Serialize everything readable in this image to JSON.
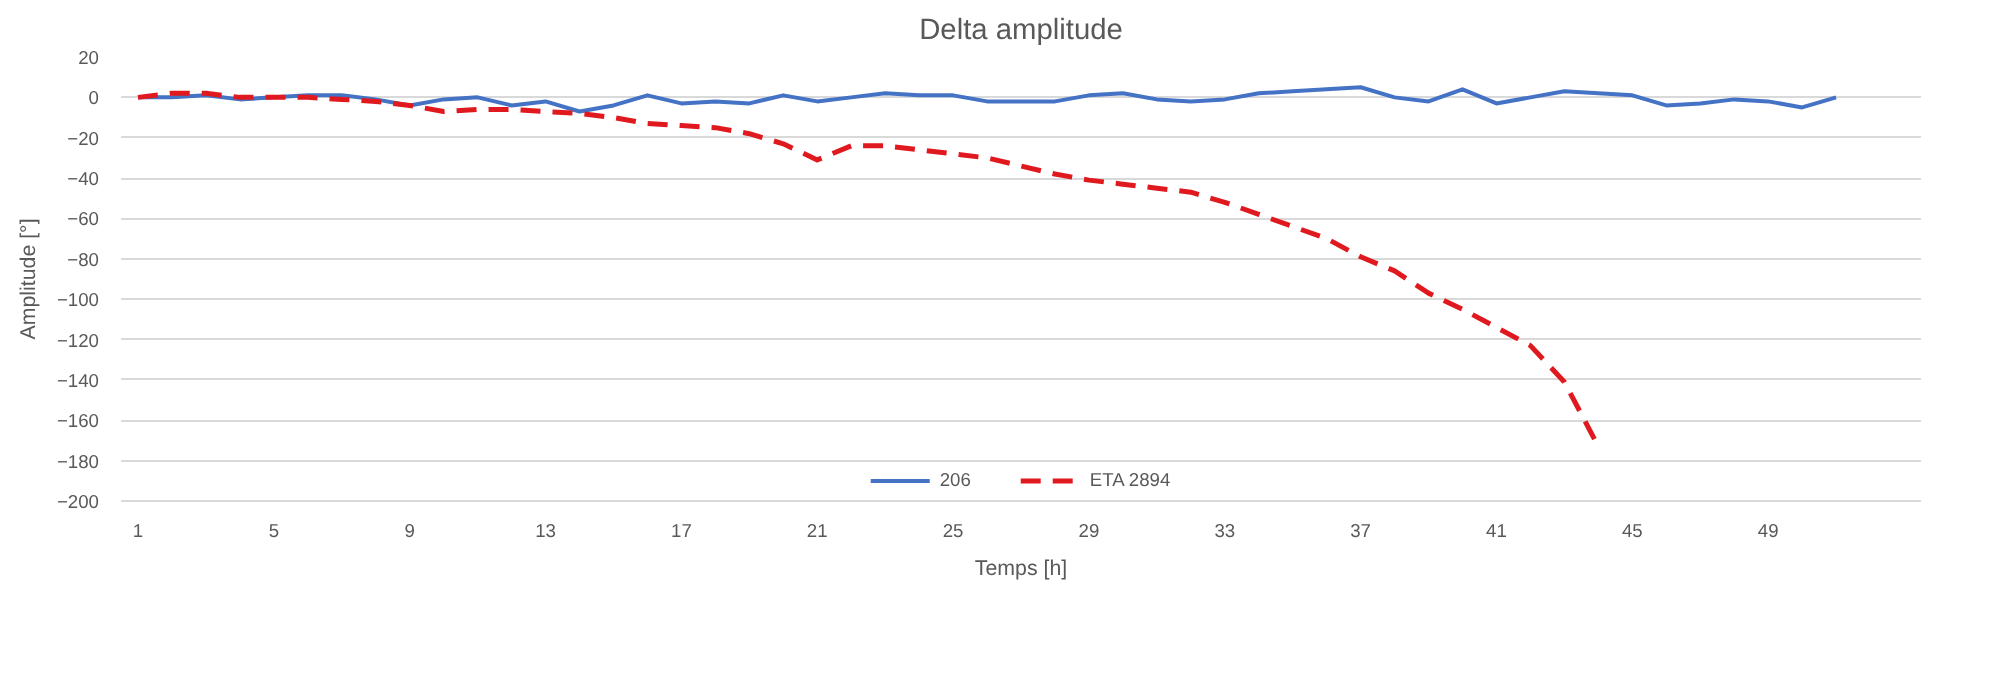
{
  "chart_data": {
    "type": "line",
    "title": "Delta amplitude",
    "xlabel": "Temps [h]",
    "ylabel": "Amplitude [°]",
    "categories": [
      "1",
      null,
      null,
      null,
      "5",
      null,
      null,
      null,
      "9",
      null,
      null,
      null,
      "13",
      null,
      null,
      null,
      "17",
      null,
      null,
      null,
      "21",
      null,
      null,
      null,
      "25",
      null,
      null,
      null,
      "29",
      null,
      null,
      null,
      "33",
      null,
      null,
      null,
      "37",
      null,
      null,
      null,
      "41",
      null,
      null,
      null,
      "45",
      null,
      null,
      null,
      "49",
      null,
      null
    ],
    "ylim": [
      -200,
      20
    ],
    "yticks": [
      20,
      0,
      -20,
      -40,
      -60,
      -80,
      -100,
      -120,
      -140,
      -160,
      -180,
      -200
    ],
    "grid": "y",
    "legend": "bottom",
    "marker": "none",
    "series": [
      {
        "name": "206",
        "color": "#4472c4",
        "line_style": "solid",
        "values": [
          0,
          0,
          1,
          -1,
          0,
          1,
          1,
          -1,
          -4,
          -1,
          0,
          -4,
          -2,
          -7,
          -4,
          1,
          -3,
          -2,
          -3,
          1,
          -2,
          0,
          2,
          1,
          1,
          -2,
          -2,
          -2,
          1,
          2,
          -1,
          -2,
          -1,
          2,
          3,
          4,
          5,
          0,
          -2,
          4,
          -3,
          0,
          3,
          2,
          1,
          -4,
          -3,
          -1,
          -2,
          -5,
          0
        ]
      },
      {
        "name": "ETA 2894",
        "color": "#e0191f",
        "line_style": "dashed",
        "values": [
          0,
          2,
          2,
          0,
          0,
          0,
          -1,
          -2,
          -4,
          -7,
          -6,
          -6,
          -7,
          -8,
          -10,
          -13,
          -14,
          -15,
          -18,
          -23,
          -31,
          -24,
          -24,
          -26,
          -28,
          -30,
          -34,
          -38,
          -41,
          -43,
          -45,
          -47,
          -52,
          -58,
          -64,
          -70,
          -79,
          -86,
          -97,
          -105,
          -114,
          -123,
          -141,
          -173,
          null,
          null,
          null,
          null,
          null,
          null,
          null
        ]
      }
    ]
  }
}
